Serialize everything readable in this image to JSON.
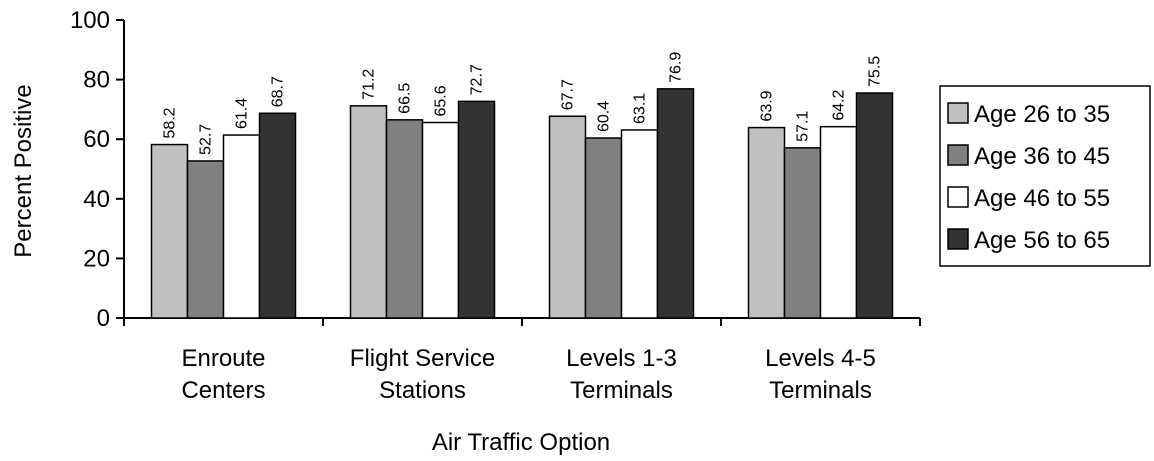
{
  "chart_data": {
    "type": "bar",
    "title": "",
    "xlabel": "Air Traffic Option",
    "ylabel": "Percent Positive",
    "ylim": [
      0,
      100
    ],
    "yticks": [
      "0",
      "20",
      "40",
      "60",
      "80",
      "100"
    ],
    "grid": false,
    "legend_position": "right",
    "categories": [
      [
        "Enroute",
        "Centers"
      ],
      [
        "Flight Service",
        "Stations"
      ],
      [
        "Levels 1-3",
        "Terminals"
      ],
      [
        "Levels 4-5",
        "Terminals"
      ]
    ],
    "series": [
      {
        "name": "Age 26 to 35",
        "color": "#c0c0c0",
        "values": [
          58.2,
          71.2,
          67.7,
          63.9
        ],
        "labels": [
          "58.2",
          "71.2",
          "67.7",
          "63.9"
        ]
      },
      {
        "name": "Age 36 to 45",
        "color": "#808080",
        "values": [
          52.7,
          66.5,
          60.4,
          57.1
        ],
        "labels": [
          "52.7",
          "66.5",
          "60.4",
          "57.1"
        ]
      },
      {
        "name": "Age 46 to 55",
        "color": "#ffffff",
        "values": [
          61.4,
          65.6,
          63.1,
          64.2
        ],
        "labels": [
          "61.4",
          "65.6",
          "63.1",
          "64.2"
        ]
      },
      {
        "name": "Age 56 to 65",
        "color": "#333333",
        "values": [
          68.7,
          72.7,
          76.9,
          75.5
        ],
        "labels": [
          "68.7",
          "72.7",
          "76.9",
          "75.5"
        ]
      }
    ]
  }
}
